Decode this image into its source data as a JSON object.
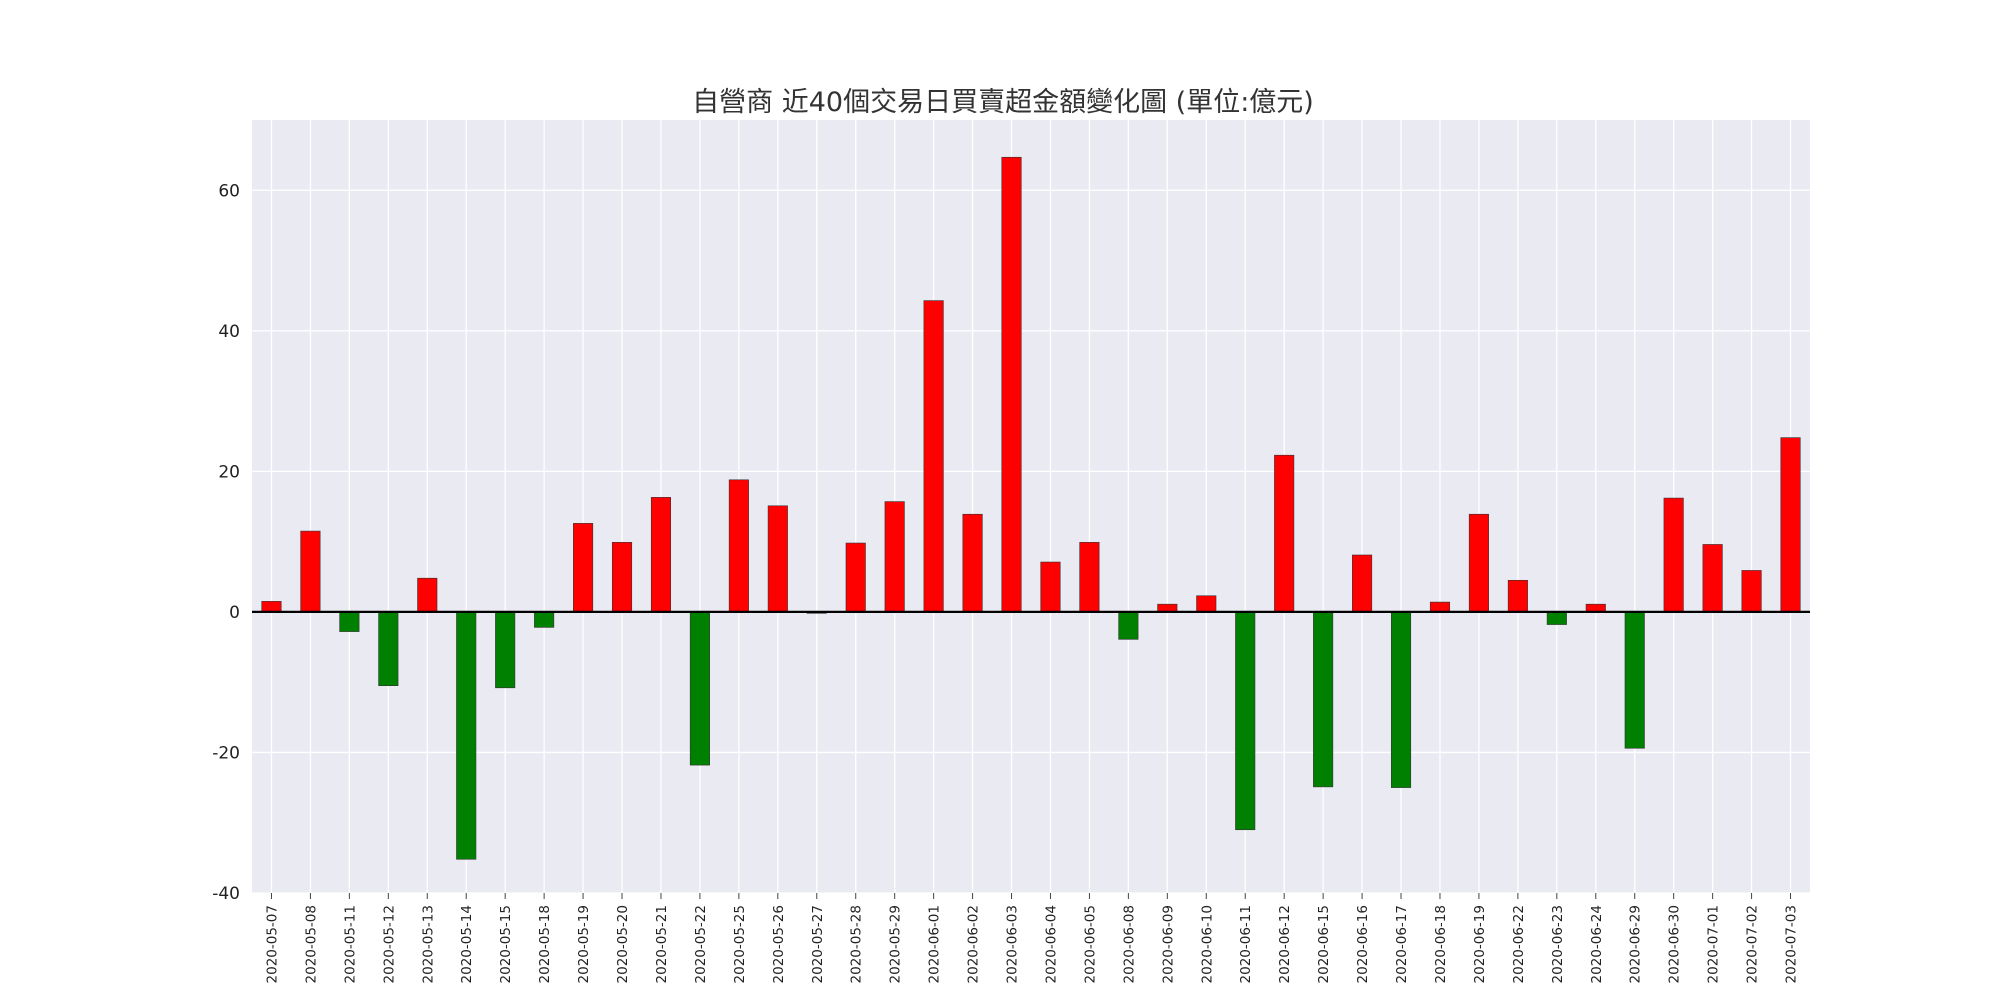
{
  "chart_data": {
    "type": "bar",
    "title": "自營商  近40個交易日買賣超金額變化圖 (單位:億元)",
    "xlabel": "",
    "ylabel": "",
    "ylim": [
      -40,
      70
    ],
    "yticks": [
      -40,
      -20,
      0,
      20,
      40,
      60
    ],
    "grid": true,
    "legend": "none",
    "colors": {
      "positive": "#ff0000",
      "negative": "#008000",
      "background": "#eaeaf2",
      "grid": "#ffffff",
      "zero_line": "#000000"
    },
    "categories": [
      "2020-05-07",
      "2020-05-08",
      "2020-05-11",
      "2020-05-12",
      "2020-05-13",
      "2020-05-14",
      "2020-05-15",
      "2020-05-18",
      "2020-05-19",
      "2020-05-20",
      "2020-05-21",
      "2020-05-22",
      "2020-05-25",
      "2020-05-26",
      "2020-05-27",
      "2020-05-28",
      "2020-05-29",
      "2020-06-01",
      "2020-06-02",
      "2020-06-03",
      "2020-06-04",
      "2020-06-05",
      "2020-06-08",
      "2020-06-09",
      "2020-06-10",
      "2020-06-11",
      "2020-06-12",
      "2020-06-15",
      "2020-06-16",
      "2020-06-17",
      "2020-06-18",
      "2020-06-19",
      "2020-06-22",
      "2020-06-23",
      "2020-06-24",
      "2020-06-29",
      "2020-06-30",
      "2020-07-01",
      "2020-07-02",
      "2020-07-03"
    ],
    "values": [
      1.5,
      11.5,
      -2.8,
      -10.5,
      4.8,
      -35.2,
      -10.8,
      -2.2,
      12.6,
      9.9,
      16.3,
      -21.8,
      18.8,
      15.1,
      -0.2,
      9.8,
      15.7,
      44.3,
      13.9,
      64.7,
      7.1,
      9.9,
      -3.9,
      1.1,
      2.3,
      -31.0,
      22.3,
      -24.9,
      8.1,
      -25.0,
      1.4,
      13.9,
      4.5,
      -1.8,
      1.1,
      -19.4,
      16.2,
      9.6,
      5.9,
      24.8
    ]
  }
}
